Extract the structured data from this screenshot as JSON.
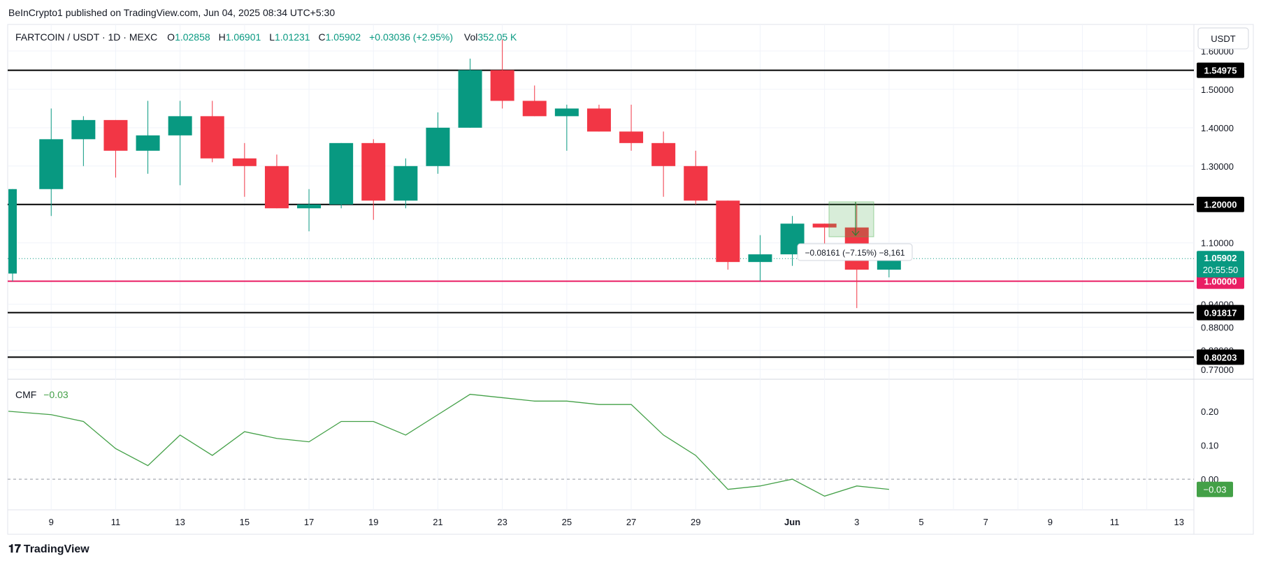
{
  "publisher_line": "BeInCrypto1 published on TradingView.com, Jun 04, 2025 08:34 UTC+5:30",
  "legend": {
    "symbol": "FARTCOIN / USDT · 1D · MEXC",
    "o_label": "O",
    "o_value": "1.02858",
    "h_label": "H",
    "h_value": "1.06901",
    "l_label": "L",
    "l_value": "1.01231",
    "c_label": "C",
    "c_value": "1.05902",
    "change": "+0.03036 (+2.95%)",
    "vol_label": "Vol",
    "vol_value": "352.05 K"
  },
  "currency_button": "USDT",
  "price_scale_ticks": [
    "1.60000",
    "1.50000",
    "1.40000",
    "1.30000",
    "1.10000",
    "0.94000",
    "0.88000",
    "0.82000",
    "0.77000"
  ],
  "price_tags": {
    "level_1": "1.54975",
    "level_2": "1.20000",
    "level_3": "1.00000",
    "level_4": "0.91817",
    "level_5": "0.80203",
    "last_price": "1.05902",
    "countdown": "20:55:50"
  },
  "measure_label": "−0.08161 (−7.15%) −8,161",
  "cmf": {
    "label": "CMF",
    "value": "−0.03",
    "tag": "−0.03",
    "ticks": [
      "0.20",
      "0.10",
      "0.00"
    ]
  },
  "x_axis_labels": [
    "9",
    "11",
    "13",
    "15",
    "17",
    "19",
    "21",
    "23",
    "25",
    "27",
    "29",
    "Jun",
    "3",
    "5",
    "7",
    "9",
    "11",
    "13"
  ],
  "footer": "TradingView",
  "colors": {
    "up": "#089981",
    "down": "#f23645",
    "level_line": "#000000",
    "support_line": "#e91e63",
    "cmf_line": "#43a047",
    "grid": "#f0f3fa"
  },
  "chart_data": {
    "type": "candlestick",
    "title": "FARTCOIN / USDT · 1D · MEXC",
    "ylim": [
      0.75,
      1.66
    ],
    "candles": [
      {
        "date": "May 7",
        "open": 1.02,
        "high": 1.24,
        "low": 1.0,
        "close": 1.24
      },
      {
        "date": "May 9",
        "open": 1.24,
        "high": 1.45,
        "low": 1.17,
        "close": 1.37
      },
      {
        "date": "May 10",
        "open": 1.37,
        "high": 1.43,
        "low": 1.3,
        "close": 1.42
      },
      {
        "date": "May 11",
        "open": 1.42,
        "high": 1.42,
        "low": 1.27,
        "close": 1.34
      },
      {
        "date": "May 12",
        "open": 1.34,
        "high": 1.47,
        "low": 1.28,
        "close": 1.38
      },
      {
        "date": "May 13",
        "open": 1.38,
        "high": 1.47,
        "low": 1.25,
        "close": 1.43
      },
      {
        "date": "May 14",
        "open": 1.43,
        "high": 1.47,
        "low": 1.31,
        "close": 1.32
      },
      {
        "date": "May 15",
        "open": 1.32,
        "high": 1.36,
        "low": 1.22,
        "close": 1.3
      },
      {
        "date": "May 16",
        "open": 1.3,
        "high": 1.33,
        "low": 1.19,
        "close": 1.19
      },
      {
        "date": "May 17",
        "open": 1.19,
        "high": 1.24,
        "low": 1.13,
        "close": 1.2
      },
      {
        "date": "May 18",
        "open": 1.2,
        "high": 1.36,
        "low": 1.19,
        "close": 1.36
      },
      {
        "date": "May 19",
        "open": 1.36,
        "high": 1.37,
        "low": 1.16,
        "close": 1.21
      },
      {
        "date": "May 20",
        "open": 1.21,
        "high": 1.32,
        "low": 1.19,
        "close": 1.3
      },
      {
        "date": "May 21",
        "open": 1.3,
        "high": 1.44,
        "low": 1.28,
        "close": 1.4
      },
      {
        "date": "May 22",
        "open": 1.4,
        "high": 1.58,
        "low": 1.4,
        "close": 1.55
      },
      {
        "date": "May 23",
        "open": 1.55,
        "high": 1.63,
        "low": 1.45,
        "close": 1.47
      },
      {
        "date": "May 24",
        "open": 1.47,
        "high": 1.51,
        "low": 1.43,
        "close": 1.43
      },
      {
        "date": "May 25",
        "open": 1.43,
        "high": 1.46,
        "low": 1.34,
        "close": 1.45
      },
      {
        "date": "May 26",
        "open": 1.45,
        "high": 1.46,
        "low": 1.39,
        "close": 1.39
      },
      {
        "date": "May 27",
        "open": 1.39,
        "high": 1.46,
        "low": 1.34,
        "close": 1.36
      },
      {
        "date": "May 28",
        "open": 1.36,
        "high": 1.39,
        "low": 1.22,
        "close": 1.3
      },
      {
        "date": "May 29",
        "open": 1.3,
        "high": 1.34,
        "low": 1.2,
        "close": 1.21
      },
      {
        "date": "May 30",
        "open": 1.21,
        "high": 1.21,
        "low": 1.03,
        "close": 1.05
      },
      {
        "date": "May 31",
        "open": 1.05,
        "high": 1.12,
        "low": 1.0,
        "close": 1.07
      },
      {
        "date": "Jun 1",
        "open": 1.07,
        "high": 1.17,
        "low": 1.04,
        "close": 1.15
      },
      {
        "date": "Jun 2",
        "open": 1.15,
        "high": 1.15,
        "low": 1.06,
        "close": 1.14
      },
      {
        "date": "Jun 3",
        "open": 1.14,
        "high": 1.2,
        "low": 0.93,
        "close": 1.03
      },
      {
        "date": "Jun 4",
        "open": 1.03,
        "high": 1.07,
        "low": 1.01,
        "close": 1.06
      }
    ],
    "horizontal_levels": [
      1.54975,
      1.2,
      1.0,
      0.91817,
      0.80203
    ],
    "last_price": 1.05902,
    "cmf_series": {
      "name": "CMF",
      "values": [
        0.2,
        0.19,
        0.17,
        0.09,
        0.04,
        0.13,
        0.07,
        0.14,
        0.12,
        0.11,
        0.17,
        0.17,
        0.13,
        0.19,
        0.25,
        0.24,
        0.23,
        0.23,
        0.22,
        0.22,
        0.13,
        0.07,
        -0.03,
        -0.02,
        0.0,
        -0.05,
        -0.02,
        -0.03
      ],
      "ylim": [
        -0.08,
        0.28
      ]
    }
  }
}
